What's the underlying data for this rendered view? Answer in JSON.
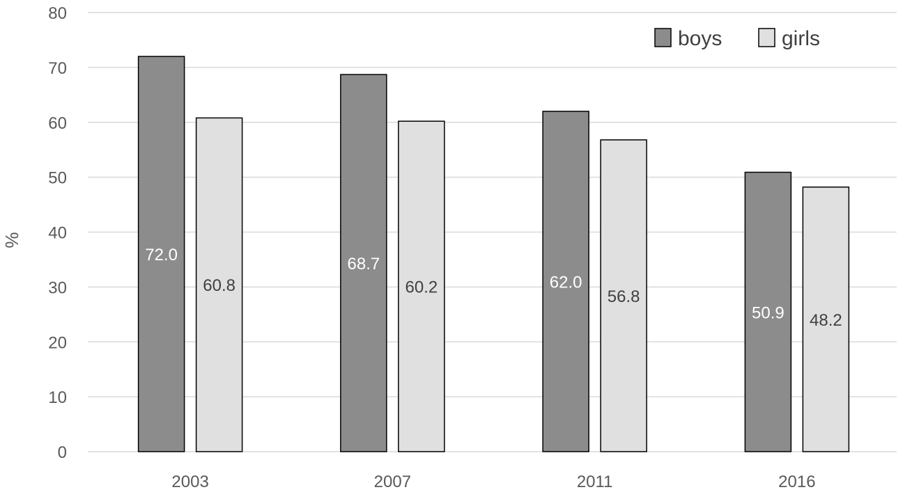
{
  "chart_data": {
    "type": "bar",
    "title": "",
    "xlabel": "",
    "ylabel": "%",
    "ylim": [
      0,
      80
    ],
    "yticks": [
      0,
      10,
      20,
      30,
      40,
      50,
      60,
      70,
      80
    ],
    "categories": [
      "2003",
      "2007",
      "2011",
      "2016"
    ],
    "series": [
      {
        "name": "boys",
        "values": [
          72.0,
          68.7,
          62.0,
          50.9
        ],
        "labels": [
          "72.0",
          "68.7",
          "62.0",
          "50.9"
        ],
        "color": "#8c8c8c",
        "label_color": "#ffffff"
      },
      {
        "name": "girls",
        "values": [
          60.8,
          60.2,
          56.8,
          48.2
        ],
        "labels": [
          "60.8",
          "60.2",
          "56.8",
          "48.2"
        ],
        "color": "#e0e0e0",
        "label_color": "#404040"
      }
    ],
    "grid": true,
    "legend_position": "top-right",
    "gridline_color": "#d9d9d9",
    "bar_border_color": "#000000"
  }
}
